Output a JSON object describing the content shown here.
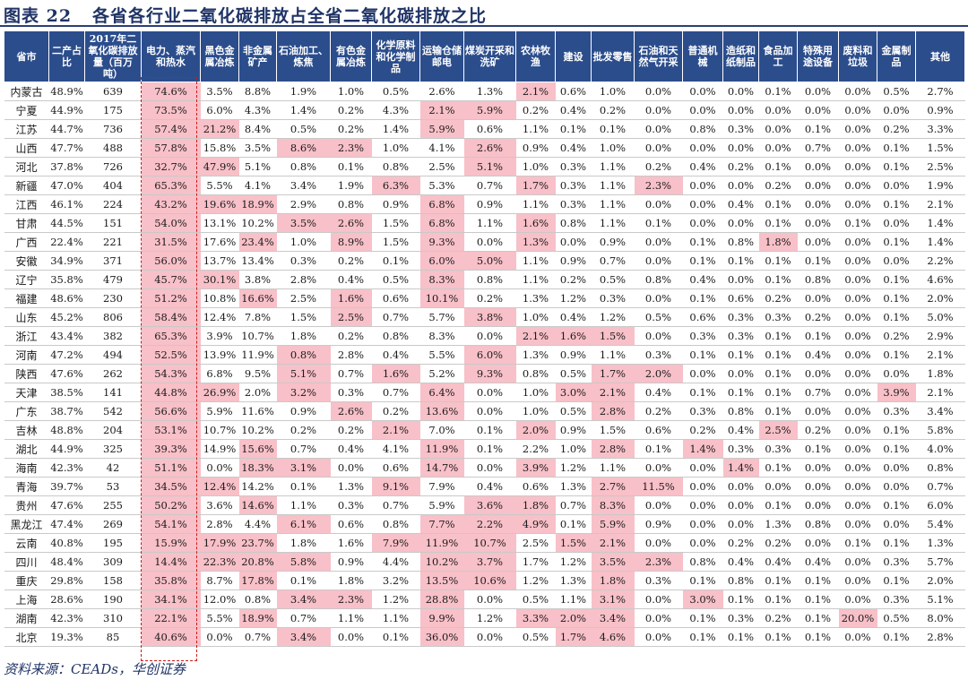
{
  "title": {
    "prefix": "图表",
    "number": "22",
    "text": "各省各行业二氧化碳排放占全省二氧化碳排放之比"
  },
  "headers": [
    "省市",
    "二产占比",
    "2017年二氧化碳排放量（百万吨）",
    "电力、蒸汽和热水",
    "黑色金属冶炼",
    "非金属矿产",
    "石油加工、炼焦",
    "有色金属冶炼",
    "化学原料和化学制品",
    "运输仓储邮电",
    "煤炭开采和洗矿",
    "农林牧渔",
    "建设",
    "批发零售",
    "石油和天然气开采",
    "普通机械",
    "造纸和纸制品",
    "食品加工",
    "特殊用途设备",
    "废料和垃圾",
    "金属制品",
    "其他"
  ],
  "rows": [
    [
      "内蒙古",
      "48.9%",
      "639",
      "74.6%",
      "3.5%",
      "8.8%",
      "1.9%",
      "1.0%",
      "0.5%",
      "2.6%",
      "1.3%",
      "2.1%",
      "0.6%",
      "1.0%",
      "0.0%",
      "0.0%",
      "0.0%",
      "0.1%",
      "0.0%",
      "0.0%",
      "0.5%",
      "2.7%"
    ],
    [
      "宁夏",
      "44.9%",
      "175",
      "73.5%",
      "6.0%",
      "4.3%",
      "1.4%",
      "0.2%",
      "4.3%",
      "2.1%",
      "5.9%",
      "0.2%",
      "0.4%",
      "0.2%",
      "0.0%",
      "0.0%",
      "0.0%",
      "0.0%",
      "0.0%",
      "0.0%",
      "0.0%",
      "0.9%"
    ],
    [
      "江苏",
      "44.7%",
      "736",
      "57.4%",
      "21.2%",
      "8.4%",
      "0.5%",
      "0.2%",
      "1.4%",
      "5.9%",
      "0.6%",
      "1.1%",
      "0.1%",
      "0.1%",
      "0.0%",
      "0.8%",
      "0.3%",
      "0.0%",
      "0.1%",
      "0.0%",
      "0.2%",
      "3.3%"
    ],
    [
      "山西",
      "47.7%",
      "488",
      "57.8%",
      "15.8%",
      "3.5%",
      "8.6%",
      "2.3%",
      "1.0%",
      "4.1%",
      "2.6%",
      "0.9%",
      "0.4%",
      "1.0%",
      "0.0%",
      "0.0%",
      "0.0%",
      "0.0%",
      "0.7%",
      "0.0%",
      "0.1%",
      "1.5%"
    ],
    [
      "河北",
      "37.8%",
      "726",
      "32.7%",
      "47.9%",
      "5.1%",
      "0.8%",
      "0.1%",
      "0.8%",
      "2.5%",
      "5.1%",
      "1.0%",
      "0.3%",
      "1.1%",
      "0.2%",
      "0.4%",
      "0.2%",
      "0.1%",
      "0.0%",
      "0.0%",
      "0.1%",
      "2.5%"
    ],
    [
      "新疆",
      "47.0%",
      "404",
      "65.3%",
      "5.5%",
      "4.1%",
      "3.4%",
      "1.9%",
      "6.3%",
      "5.3%",
      "0.7%",
      "1.7%",
      "0.3%",
      "1.1%",
      "2.3%",
      "0.0%",
      "0.0%",
      "0.2%",
      "0.0%",
      "0.0%",
      "0.0%",
      "1.9%"
    ],
    [
      "江西",
      "46.1%",
      "224",
      "43.2%",
      "19.6%",
      "18.9%",
      "2.9%",
      "0.8%",
      "0.9%",
      "6.8%",
      "0.9%",
      "1.1%",
      "0.3%",
      "1.1%",
      "0.0%",
      "0.0%",
      "0.4%",
      "0.1%",
      "0.0%",
      "0.0%",
      "0.1%",
      "2.1%"
    ],
    [
      "甘肃",
      "44.5%",
      "151",
      "54.0%",
      "13.1%",
      "10.2%",
      "3.5%",
      "2.6%",
      "1.5%",
      "6.8%",
      "1.1%",
      "1.6%",
      "0.8%",
      "1.1%",
      "0.1%",
      "0.0%",
      "0.0%",
      "0.1%",
      "0.0%",
      "0.1%",
      "0.0%",
      "1.4%"
    ],
    [
      "广西",
      "22.4%",
      "221",
      "31.5%",
      "17.6%",
      "23.4%",
      "1.0%",
      "8.9%",
      "1.5%",
      "9.3%",
      "0.0%",
      "1.3%",
      "0.0%",
      "0.9%",
      "0.0%",
      "0.1%",
      "0.8%",
      "1.8%",
      "0.0%",
      "0.0%",
      "0.1%",
      "1.4%"
    ],
    [
      "安徽",
      "34.9%",
      "371",
      "56.0%",
      "13.7%",
      "13.4%",
      "0.3%",
      "0.2%",
      "0.1%",
      "6.0%",
      "5.0%",
      "1.1%",
      "0.9%",
      "0.7%",
      "0.0%",
      "0.1%",
      "0.1%",
      "0.1%",
      "0.1%",
      "0.0%",
      "0.0%",
      "2.2%"
    ],
    [
      "辽宁",
      "35.8%",
      "479",
      "45.7%",
      "30.1%",
      "3.8%",
      "2.8%",
      "0.4%",
      "0.5%",
      "8.3%",
      "0.8%",
      "1.1%",
      "0.2%",
      "0.5%",
      "0.8%",
      "0.4%",
      "0.0%",
      "0.1%",
      "0.8%",
      "0.0%",
      "0.1%",
      "4.6%"
    ],
    [
      "福建",
      "48.6%",
      "230",
      "51.2%",
      "10.8%",
      "16.6%",
      "2.5%",
      "1.6%",
      "0.6%",
      "10.1%",
      "0.2%",
      "1.3%",
      "1.2%",
      "0.3%",
      "0.0%",
      "0.1%",
      "0.6%",
      "0.2%",
      "0.0%",
      "0.0%",
      "0.1%",
      "2.0%"
    ],
    [
      "山东",
      "45.2%",
      "806",
      "58.4%",
      "12.4%",
      "7.8%",
      "1.5%",
      "2.5%",
      "0.7%",
      "5.7%",
      "3.8%",
      "1.0%",
      "0.4%",
      "1.2%",
      "0.5%",
      "0.6%",
      "0.3%",
      "0.3%",
      "0.2%",
      "0.0%",
      "0.1%",
      "5.0%"
    ],
    [
      "浙江",
      "43.4%",
      "382",
      "65.3%",
      "3.9%",
      "10.7%",
      "1.8%",
      "0.2%",
      "0.8%",
      "8.3%",
      "0.0%",
      "2.1%",
      "1.6%",
      "1.5%",
      "0.0%",
      "0.3%",
      "0.3%",
      "0.1%",
      "0.1%",
      "0.0%",
      "0.2%",
      "2.9%"
    ],
    [
      "河南",
      "47.2%",
      "494",
      "52.5%",
      "13.9%",
      "11.9%",
      "0.8%",
      "2.8%",
      "0.4%",
      "5.5%",
      "6.0%",
      "1.3%",
      "0.9%",
      "1.1%",
      "0.3%",
      "0.1%",
      "0.1%",
      "0.1%",
      "0.4%",
      "0.0%",
      "0.1%",
      "2.1%"
    ],
    [
      "陕西",
      "47.6%",
      "262",
      "54.3%",
      "6.8%",
      "9.5%",
      "5.1%",
      "0.7%",
      "1.6%",
      "5.2%",
      "9.3%",
      "0.8%",
      "0.5%",
      "1.7%",
      "2.0%",
      "0.0%",
      "0.0%",
      "0.1%",
      "0.0%",
      "0.0%",
      "0.0%",
      "1.8%"
    ],
    [
      "天津",
      "38.5%",
      "141",
      "44.8%",
      "26.9%",
      "2.0%",
      "3.2%",
      "0.3%",
      "0.7%",
      "6.4%",
      "0.0%",
      "1.0%",
      "3.0%",
      "2.1%",
      "0.4%",
      "0.1%",
      "0.1%",
      "0.1%",
      "0.7%",
      "0.0%",
      "3.9%",
      "2.1%"
    ],
    [
      "广东",
      "38.7%",
      "542",
      "56.6%",
      "5.9%",
      "11.6%",
      "0.9%",
      "2.6%",
      "0.2%",
      "13.6%",
      "0.0%",
      "1.0%",
      "0.5%",
      "2.8%",
      "0.2%",
      "0.3%",
      "0.8%",
      "0.1%",
      "0.0%",
      "0.0%",
      "0.3%",
      "3.4%"
    ],
    [
      "吉林",
      "48.8%",
      "204",
      "53.1%",
      "10.7%",
      "10.2%",
      "0.2%",
      "0.2%",
      "2.1%",
      "7.0%",
      "0.1%",
      "2.0%",
      "0.9%",
      "1.5%",
      "0.6%",
      "0.2%",
      "0.4%",
      "2.5%",
      "0.2%",
      "0.0%",
      "0.1%",
      "5.8%"
    ],
    [
      "湖北",
      "44.9%",
      "325",
      "39.3%",
      "14.9%",
      "15.6%",
      "0.7%",
      "0.4%",
      "4.1%",
      "11.9%",
      "0.1%",
      "2.2%",
      "1.0%",
      "2.8%",
      "0.1%",
      "1.4%",
      "0.3%",
      "0.3%",
      "0.1%",
      "0.0%",
      "0.1%",
      "4.0%"
    ],
    [
      "海南",
      "42.3%",
      "42",
      "51.1%",
      "0.0%",
      "18.3%",
      "3.1%",
      "0.0%",
      "0.6%",
      "14.7%",
      "0.0%",
      "3.9%",
      "1.2%",
      "1.1%",
      "0.0%",
      "0.0%",
      "1.4%",
      "0.1%",
      "0.0%",
      "0.0%",
      "0.0%",
      "0.8%"
    ],
    [
      "青海",
      "39.7%",
      "53",
      "34.5%",
      "12.4%",
      "14.2%",
      "0.1%",
      "1.3%",
      "9.1%",
      "7.9%",
      "0.4%",
      "0.6%",
      "1.3%",
      "2.7%",
      "11.5%",
      "0.0%",
      "0.0%",
      "0.0%",
      "0.0%",
      "0.0%",
      "0.0%",
      "0.7%"
    ],
    [
      "贵州",
      "47.6%",
      "255",
      "50.2%",
      "3.6%",
      "14.6%",
      "1.1%",
      "0.3%",
      "0.7%",
      "5.9%",
      "3.6%",
      "1.8%",
      "0.7%",
      "8.3%",
      "0.0%",
      "0.0%",
      "0.0%",
      "0.1%",
      "0.0%",
      "0.0%",
      "0.1%",
      "6.0%"
    ],
    [
      "黑龙江",
      "47.4%",
      "269",
      "54.1%",
      "2.8%",
      "4.4%",
      "6.1%",
      "0.6%",
      "0.8%",
      "7.7%",
      "2.2%",
      "4.9%",
      "0.1%",
      "5.9%",
      "0.9%",
      "0.0%",
      "0.0%",
      "1.3%",
      "0.8%",
      "0.0%",
      "0.0%",
      "5.4%"
    ],
    [
      "云南",
      "40.8%",
      "195",
      "15.9%",
      "17.9%",
      "23.7%",
      "1.8%",
      "1.6%",
      "7.9%",
      "11.9%",
      "10.7%",
      "2.5%",
      "1.5%",
      "2.1%",
      "0.0%",
      "0.0%",
      "0.2%",
      "0.2%",
      "0.0%",
      "0.1%",
      "0.1%",
      "1.3%"
    ],
    [
      "四川",
      "48.4%",
      "309",
      "14.4%",
      "22.3%",
      "20.8%",
      "5.8%",
      "0.9%",
      "4.4%",
      "10.2%",
      "3.7%",
      "1.7%",
      "1.2%",
      "3.5%",
      "2.3%",
      "0.8%",
      "0.4%",
      "0.4%",
      "0.4%",
      "0.0%",
      "0.3%",
      "5.7%"
    ],
    [
      "重庆",
      "29.8%",
      "158",
      "35.8%",
      "8.7%",
      "17.8%",
      "0.1%",
      "1.8%",
      "3.2%",
      "13.5%",
      "10.6%",
      "1.2%",
      "1.3%",
      "1.8%",
      "0.3%",
      "0.1%",
      "0.8%",
      "0.1%",
      "0.1%",
      "0.0%",
      "0.1%",
      "2.0%"
    ],
    [
      "上海",
      "28.6%",
      "190",
      "34.1%",
      "12.0%",
      "0.8%",
      "3.4%",
      "2.3%",
      "1.2%",
      "28.8%",
      "0.0%",
      "0.5%",
      "1.1%",
      "3.1%",
      "0.0%",
      "3.0%",
      "0.1%",
      "0.1%",
      "0.1%",
      "0.0%",
      "0.3%",
      "5.1%"
    ],
    [
      "湖南",
      "42.3%",
      "310",
      "22.1%",
      "5.5%",
      "18.9%",
      "0.7%",
      "1.1%",
      "1.1%",
      "9.9%",
      "1.2%",
      "3.3%",
      "2.0%",
      "3.4%",
      "0.0%",
      "0.1%",
      "0.3%",
      "0.2%",
      "0.1%",
      "20.0%",
      "0.5%",
      "8.0%"
    ],
    [
      "北京",
      "19.3%",
      "85",
      "40.6%",
      "0.0%",
      "0.7%",
      "3.4%",
      "0.0%",
      "0.1%",
      "36.0%",
      "0.0%",
      "0.5%",
      "1.7%",
      "4.6%",
      "0.0%",
      "0.1%",
      "0.1%",
      "0.1%",
      "0.1%",
      "0.0%",
      "0.1%",
      "2.8%"
    ]
  ],
  "highlights": [
    [
      0,
      [
        3,
        11
      ]
    ],
    [
      1,
      [
        3,
        9,
        10
      ]
    ],
    [
      2,
      [
        3,
        4,
        9
      ]
    ],
    [
      3,
      [
        3,
        6,
        7,
        10
      ]
    ],
    [
      4,
      [
        3,
        4,
        10
      ]
    ],
    [
      5,
      [
        3,
        8,
        11,
        14
      ]
    ],
    [
      6,
      [
        3,
        4,
        5,
        9
      ]
    ],
    [
      7,
      [
        3,
        6,
        7,
        9,
        11
      ]
    ],
    [
      8,
      [
        3,
        5,
        7,
        9,
        11,
        17
      ]
    ],
    [
      9,
      [
        3,
        9,
        10
      ]
    ],
    [
      10,
      [
        3,
        4,
        9
      ]
    ],
    [
      11,
      [
        3,
        5,
        7,
        9
      ]
    ],
    [
      12,
      [
        3,
        7,
        10
      ]
    ],
    [
      13,
      [
        3,
        11,
        12,
        13
      ]
    ],
    [
      14,
      [
        3,
        6,
        10
      ]
    ],
    [
      15,
      [
        3,
        6,
        8,
        10,
        13,
        14
      ]
    ],
    [
      16,
      [
        3,
        4,
        6,
        9,
        12,
        13,
        20
      ]
    ],
    [
      17,
      [
        3,
        7,
        9,
        13
      ]
    ],
    [
      18,
      [
        3,
        8,
        11,
        17
      ]
    ],
    [
      19,
      [
        3,
        5,
        9,
        13,
        15
      ]
    ],
    [
      20,
      [
        3,
        5,
        6,
        9,
        11,
        16
      ]
    ],
    [
      21,
      [
        3,
        4,
        8,
        13,
        14
      ]
    ],
    [
      22,
      [
        3,
        5,
        10,
        11,
        13
      ]
    ],
    [
      23,
      [
        3,
        6,
        9,
        10,
        11,
        13
      ]
    ],
    [
      24,
      [
        3,
        4,
        5,
        8,
        9,
        10,
        12,
        13
      ]
    ],
    [
      25,
      [
        3,
        4,
        5,
        6,
        9,
        10,
        13,
        14
      ]
    ],
    [
      26,
      [
        3,
        5,
        9,
        10,
        13
      ]
    ],
    [
      27,
      [
        3,
        6,
        7,
        9,
        13,
        15
      ]
    ],
    [
      28,
      [
        3,
        5,
        9,
        11,
        12,
        13,
        19
      ]
    ],
    [
      29,
      [
        3,
        6,
        9,
        12,
        13
      ]
    ]
  ],
  "source": "资料来源：CEADs，华创证券",
  "colors": {
    "header_bg": "#2b4d8c",
    "highlight": "#f8c0c8",
    "box": "#d01818",
    "title": "#1f3366"
  }
}
